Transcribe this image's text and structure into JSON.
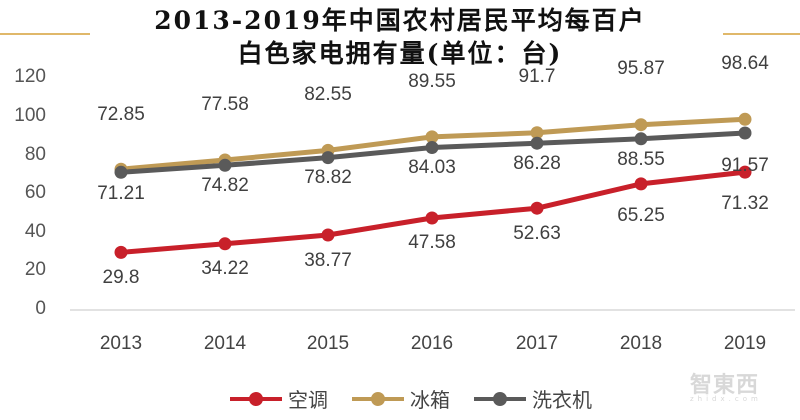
{
  "title": {
    "line1": "2013-2019年中国农村居民平均每百户",
    "line2": "白色家电拥有量(单位：台)"
  },
  "legend": {
    "items": [
      {
        "label": "空调",
        "color": "#c8202a"
      },
      {
        "label": "冰箱",
        "color": "#bf9a55"
      },
      {
        "label": "洗衣机",
        "color": "#5a5a5a"
      }
    ]
  },
  "watermark": {
    "text": "智東西",
    "sub": "zhidx.com"
  },
  "y_ticks": [
    "120",
    "100",
    "80",
    "60",
    "40",
    "20",
    "0"
  ],
  "x_ticks": [
    "2013",
    "2014",
    "2015",
    "2016",
    "2017",
    "2018",
    "2019"
  ],
  "labels": {
    "ac": [
      "29.8",
      "34.22",
      "38.77",
      "47.58",
      "52.63",
      "65.25",
      "71.32"
    ],
    "fridge": [
      "72.85",
      "77.58",
      "82.55",
      "89.55",
      "91.7",
      "95.87",
      "98.64"
    ],
    "washer": [
      "71.21",
      "74.82",
      "78.82",
      "84.03",
      "86.28",
      "88.55",
      "91.57"
    ]
  },
  "chart_data": {
    "type": "line",
    "title": "2013-2019年中国农村居民平均每百户白色家电拥有量(单位：台)",
    "xlabel": "",
    "ylabel": "",
    "categories": [
      "2013",
      "2014",
      "2015",
      "2016",
      "2017",
      "2018",
      "2019"
    ],
    "series": [
      {
        "name": "空调",
        "color": "#c8202a",
        "values": [
          29.8,
          34.22,
          38.77,
          47.58,
          52.63,
          65.25,
          71.32
        ]
      },
      {
        "name": "冰箱",
        "color": "#bf9a55",
        "values": [
          72.85,
          77.58,
          82.55,
          89.55,
          91.7,
          95.87,
          98.64
        ]
      },
      {
        "name": "洗衣机",
        "color": "#5a5a5a",
        "values": [
          71.21,
          74.82,
          78.82,
          84.03,
          86.28,
          88.55,
          91.57
        ]
      }
    ],
    "ylim": [
      0,
      120
    ],
    "yticks": [
      0,
      20,
      40,
      60,
      80,
      100,
      120
    ],
    "grid": false,
    "legend_position": "bottom",
    "data_labels": true
  }
}
